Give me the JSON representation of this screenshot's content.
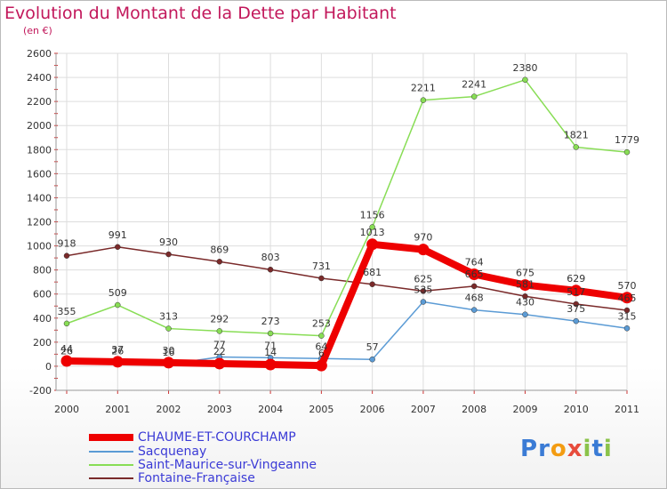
{
  "title": "Evolution du Montant de la Dette par Habitant",
  "subtitle": "(en €)",
  "logo": {
    "text": "Proxiti",
    "letters": [
      "P",
      "r",
      "o",
      "x",
      "i",
      "t",
      "i"
    ],
    "colors": [
      "#3a7bd5",
      "#3a7bd5",
      "#f39c12",
      "#e74c3c",
      "#8bc34a",
      "#3a7bd5",
      "#8bc34a"
    ]
  },
  "chart_data": {
    "type": "line",
    "x": [
      "2000",
      "2001",
      "2002",
      "2003",
      "2004",
      "2005",
      "2006",
      "2007",
      "2008",
      "2009",
      "2010",
      "2011"
    ],
    "ylim": [
      -200,
      2600
    ],
    "yticks": [
      -200,
      0,
      200,
      400,
      600,
      800,
      1000,
      1200,
      1400,
      1600,
      1800,
      2000,
      2200,
      2400,
      2600
    ],
    "grid": true,
    "legend_position": "bottom",
    "series": [
      {
        "name": "CHAUME-ET-COURCHAMP",
        "color": "#ee0000",
        "width": 8,
        "values": [
          44,
          37,
          30,
          22,
          14,
          6,
          1013,
          970,
          764,
          675,
          629,
          570
        ],
        "labels": [
          "44",
          "37",
          "30",
          "22",
          "14",
          "6",
          "1013",
          "970",
          "764",
          "675",
          "629",
          "570"
        ]
      },
      {
        "name": "Sacquenay",
        "color": "#5b9bd5",
        "width": 1.5,
        "values": [
          26,
          26,
          16,
          77,
          71,
          64,
          57,
          535,
          468,
          430,
          375,
          315
        ],
        "labels": [
          "26",
          "26",
          "16",
          "77",
          "71",
          "64",
          "57",
          "535",
          "468",
          "430",
          "375",
          "315"
        ]
      },
      {
        "name": "Saint-Maurice-sur-Vingeanne",
        "color": "#88dd55",
        "width": 1.5,
        "values": [
          355,
          509,
          313,
          292,
          273,
          253,
          1156,
          2211,
          2241,
          2380,
          1821,
          1779
        ],
        "labels": [
          "355",
          "509",
          "313",
          "292",
          "273",
          "253",
          "1156",
          "2211",
          "2241",
          "2380",
          "1821",
          "1779"
        ]
      },
      {
        "name": "Fontaine-Française",
        "color": "#7a2a2a",
        "width": 1.5,
        "values": [
          918,
          991,
          930,
          869,
          803,
          731,
          681,
          625,
          665,
          581,
          517,
          465
        ],
        "labels": [
          "918",
          "991",
          "930",
          "869",
          "803",
          "731",
          "681",
          "625",
          "665",
          "581",
          "517",
          "465"
        ]
      }
    ]
  }
}
